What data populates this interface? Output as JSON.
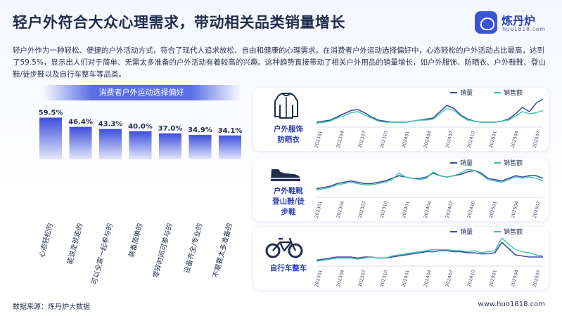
{
  "header": {
    "title": "轻户外符合大众心理需求，带动相关品类销量增长",
    "logo_name": "炼丹炉",
    "logo_url": "huo1818.com"
  },
  "description": "轻户外作为一种轻松、便捷的户外活动方式，符合了现代人追求放松、自由和健康的心理需求。在消费者户外运动选择偏好中，心态轻松的户外活动占比最高，达到了59.5%，显示出人们对于简单、无需太多准备的户外活动有着较高的兴趣。这种趋势直接带动了相关户外用品的销量增长，如户外服饰、防晒衣、户外鞋靴、登山鞋/徒步鞋以及自行车整车等品类。",
  "footer": {
    "source": "数据来源：炼丹炉大数据",
    "url": "www.huo1818.com"
  },
  "colors": {
    "sales_volume": "#3b4ea8",
    "sales_amount": "#3ec4a8",
    "bar_top": "#3e4fdc",
    "bar_bottom": "#e3e8fb"
  },
  "icons": [
    "jacket-icon",
    "shoe-icon",
    "bicycle-icon"
  ],
  "chart_data": [
    {
      "type": "bar",
      "title": "消费者户外运动选择偏好",
      "categories": [
        "心态轻松的",
        "能说走就走的",
        "可以全家一起参与的",
        "装备简单的",
        "零碎时间可参与的",
        "设备齐全/专业的",
        "不需要太多准备的"
      ],
      "values": [
        59.5,
        46.4,
        43.3,
        40.0,
        37.0,
        34.9,
        34.1
      ],
      "value_labels": [
        "59.5%",
        "46.4%",
        "43.3%",
        "40.0%",
        "37.0%",
        "34.9%",
        "34.1%"
      ],
      "ylim": [
        0,
        60
      ]
    },
    {
      "type": "line",
      "title": "户外服饰 防晒衣",
      "title_lines": [
        "户外服饰",
        "防晒衣"
      ],
      "x_ticks": [
        "202301",
        "202304",
        "202307",
        "202310",
        "202401",
        "202404",
        "202407",
        "202410",
        "202501",
        "202504",
        "202507"
      ],
      "series": [
        {
          "name": "销量",
          "values": [
            4,
            5,
            6,
            9,
            12,
            15,
            16,
            13,
            9,
            6,
            5,
            4,
            4,
            4,
            5,
            6,
            7,
            8,
            14,
            20,
            17,
            11,
            7,
            5,
            4,
            4,
            4,
            5,
            7,
            12,
            18,
            14,
            22,
            26
          ]
        },
        {
          "name": "销售额",
          "values": [
            3,
            4,
            5,
            8,
            10,
            13,
            14,
            11,
            8,
            5,
            4,
            4,
            4,
            4,
            5,
            6,
            6,
            7,
            12,
            17,
            15,
            10,
            6,
            5,
            4,
            4,
            4,
            5,
            6,
            10,
            14,
            12,
            13,
            15
          ]
        }
      ]
    },
    {
      "type": "line",
      "title": "户外鞋靴 登山鞋/徒步鞋",
      "title_lines": [
        "户外鞋靴",
        "登山鞋/徒",
        "步鞋"
      ],
      "x_ticks": [
        "202301",
        "202304",
        "202307",
        "202310",
        "202401",
        "202404",
        "202407",
        "202410",
        "202501",
        "202504",
        "202507"
      ],
      "series": [
        {
          "name": "销量",
          "values": [
            6,
            7,
            8,
            10,
            11,
            12,
            11,
            10,
            10,
            11,
            12,
            14,
            16,
            15,
            14,
            14,
            15,
            18,
            16,
            15,
            16,
            17,
            19,
            20,
            18,
            14,
            13,
            12,
            14,
            16,
            15,
            16,
            16,
            14
          ]
        },
        {
          "name": "销售额",
          "values": [
            5,
            6,
            7,
            9,
            10,
            11,
            10,
            9,
            9,
            10,
            11,
            13,
            18,
            15,
            14,
            13,
            14,
            19,
            16,
            15,
            16,
            18,
            21,
            20,
            17,
            13,
            12,
            11,
            13,
            15,
            14,
            15,
            14,
            12
          ]
        }
      ]
    },
    {
      "type": "line",
      "title": "自行车整车",
      "title_lines": [
        "自行车整车"
      ],
      "x_ticks": [
        "202301",
        "202304",
        "202307",
        "202310",
        "202401",
        "202404",
        "202407",
        "202410",
        "202501",
        "202504",
        "202507"
      ],
      "series": [
        {
          "name": "销量",
          "values": [
            5,
            6,
            7,
            8,
            8,
            8,
            7,
            8,
            8,
            7,
            7,
            8,
            9,
            10,
            11,
            12,
            13,
            13,
            14,
            14,
            13,
            13,
            12,
            12,
            11,
            11,
            12,
            22,
            16,
            10,
            9,
            8,
            8,
            8
          ]
        },
        {
          "name": "销售额",
          "values": [
            4,
            5,
            6,
            7,
            7,
            7,
            6,
            7,
            8,
            7,
            7,
            9,
            10,
            11,
            12,
            13,
            14,
            15,
            15,
            15,
            14,
            14,
            13,
            14,
            12,
            13,
            14,
            26,
            20,
            15,
            13,
            12,
            10,
            9
          ]
        }
      ]
    }
  ]
}
